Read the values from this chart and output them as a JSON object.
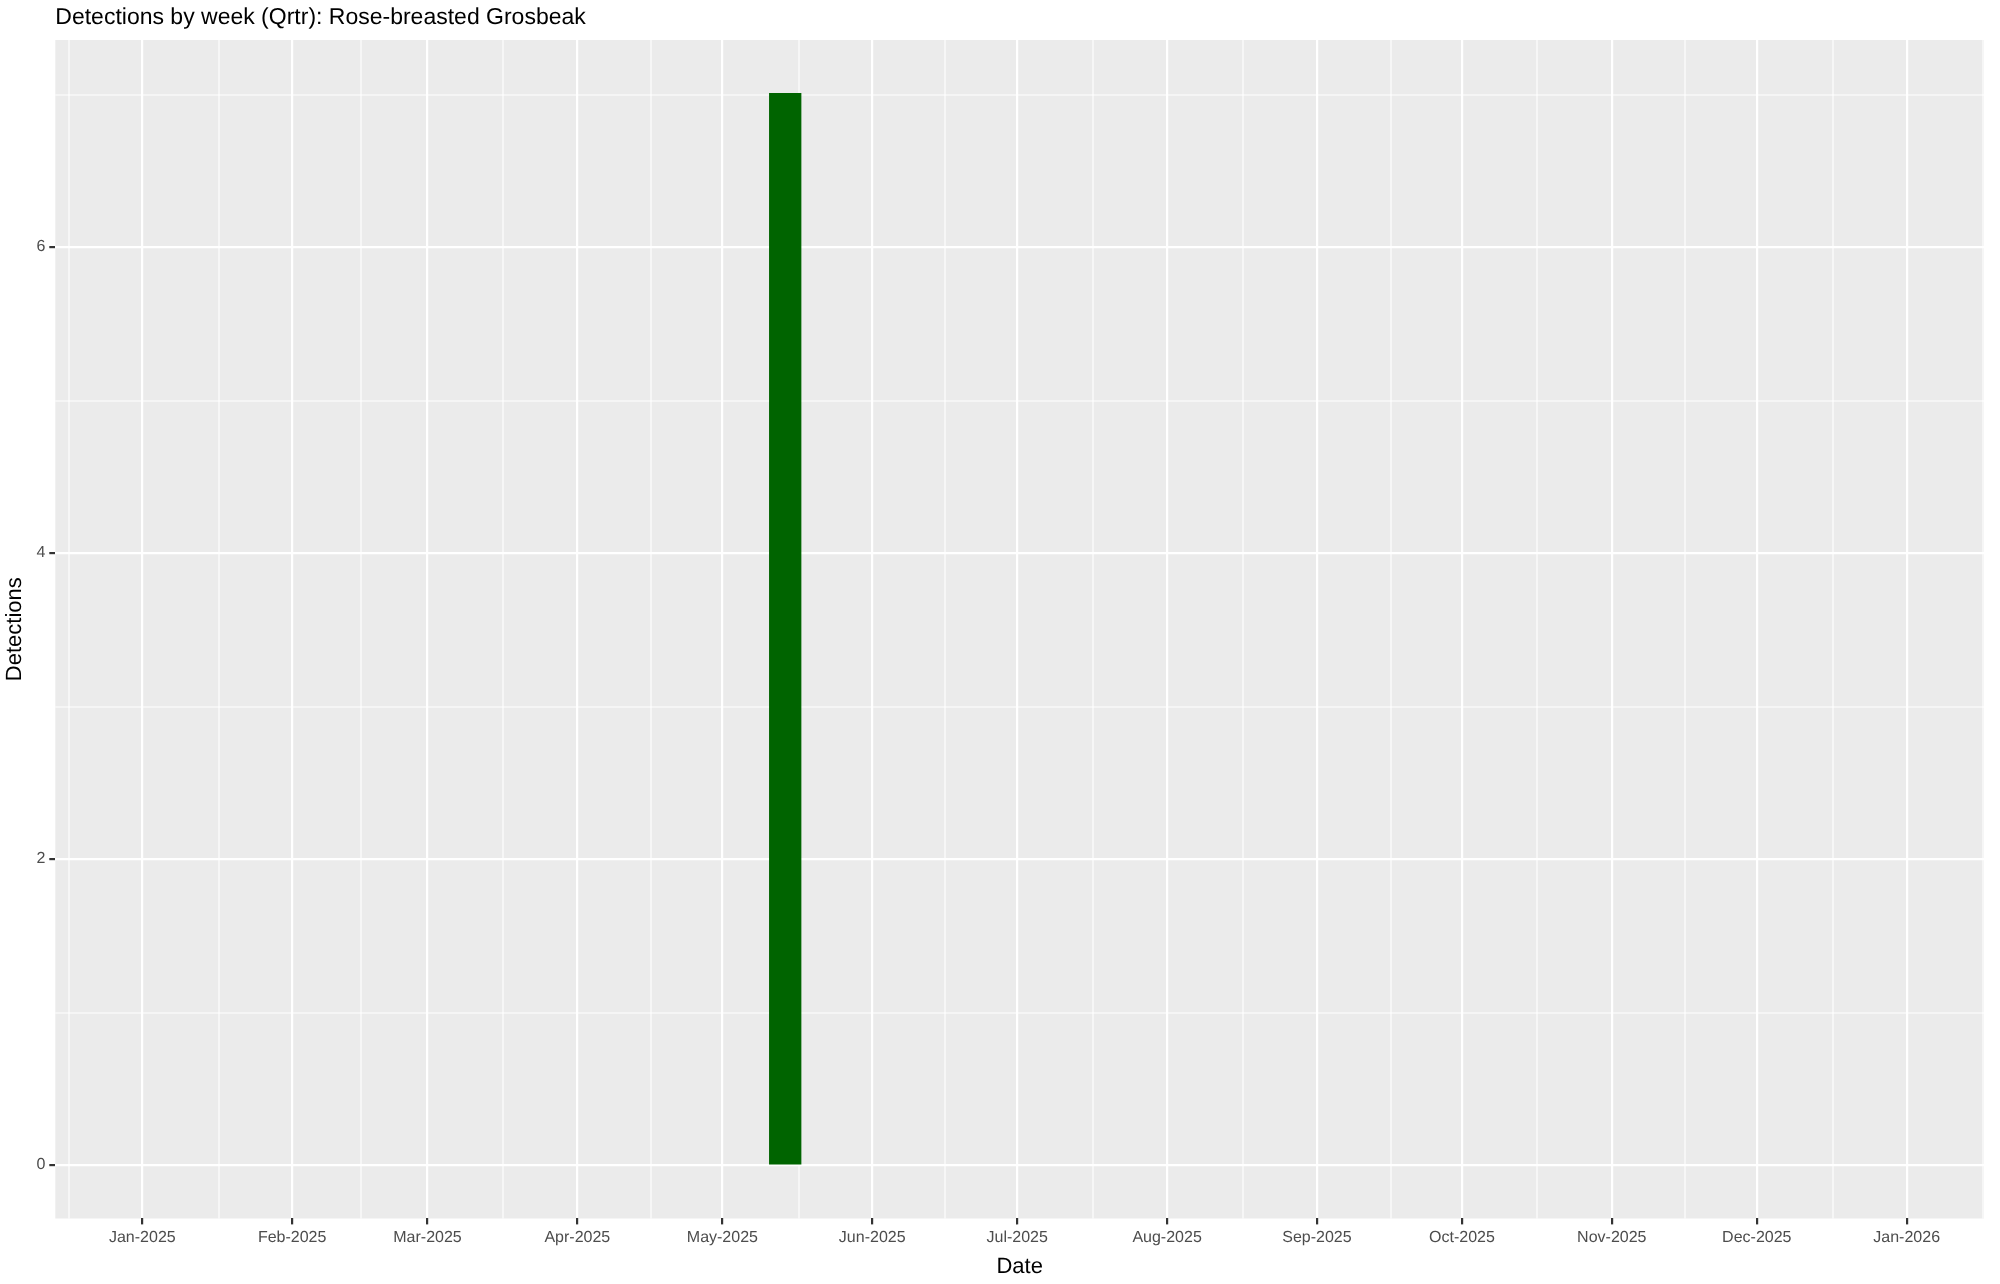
{
  "chart_data": {
    "type": "bar",
    "title": "Detections by week (Qrtr): Rose-breasted Grosbeak",
    "xlabel": "Date",
    "ylabel": "Detections",
    "x": [
      "2025-05-14"
    ],
    "values": [
      7
    ],
    "color": "#006400",
    "xlim": [
      "2024-12-14",
      "2026-01-17"
    ],
    "xticks": [
      {
        "value": "2025-01-01",
        "label": "Jan-2025"
      },
      {
        "value": "2025-02-01",
        "label": "Feb-2025"
      },
      {
        "value": "2025-03-01",
        "label": "Mar-2025"
      },
      {
        "value": "2025-04-01",
        "label": "Apr-2025"
      },
      {
        "value": "2025-05-01",
        "label": "May-2025"
      },
      {
        "value": "2025-06-01",
        "label": "Jun-2025"
      },
      {
        "value": "2025-07-01",
        "label": "Jul-2025"
      },
      {
        "value": "2025-08-01",
        "label": "Aug-2025"
      },
      {
        "value": "2025-09-01",
        "label": "Sep-2025"
      },
      {
        "value": "2025-10-01",
        "label": "Oct-2025"
      },
      {
        "value": "2025-11-01",
        "label": "Nov-2025"
      },
      {
        "value": "2025-12-01",
        "label": "Dec-2025"
      },
      {
        "value": "2026-01-01",
        "label": "Jan-2026"
      }
    ],
    "ylim": [
      -0.35,
      7.35
    ],
    "yticks": [
      0,
      2,
      4,
      6
    ],
    "grid": true
  }
}
